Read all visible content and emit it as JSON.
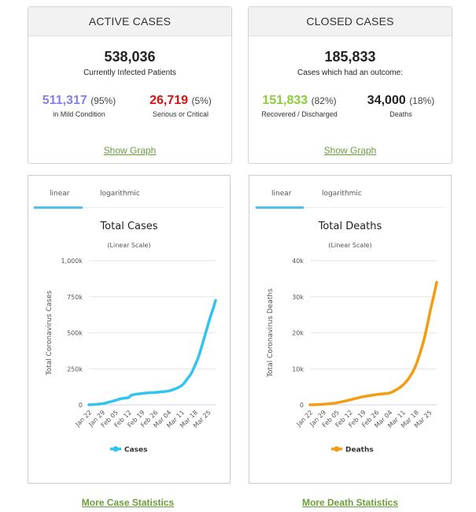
{
  "active": {
    "title": "ACTIVE CASES",
    "total": "538,036",
    "total_label": "Currently Infected Patients",
    "mild": {
      "value": "511,317",
      "pct": "(95%)",
      "label": "in Mild Condition",
      "color": "#8080f0"
    },
    "serious": {
      "value": "26,719",
      "pct": "(5%)",
      "label": "Serious or Critical",
      "color": "#e01010"
    },
    "show_graph": "Show Graph"
  },
  "closed": {
    "title": "CLOSED CASES",
    "total": "185,833",
    "total_label": "Cases which had an outcome:",
    "recovered": {
      "value": "151,833",
      "pct": "(82%)",
      "label": "Recovered / Discharged",
      "color": "#8acf36"
    },
    "deaths": {
      "value": "34,000",
      "pct": "(18%)",
      "label": "Deaths",
      "color": "#222222"
    },
    "show_graph": "Show Graph"
  },
  "links": {
    "more_cases": "More Case Statistics",
    "more_deaths": "More Death Statistics"
  },
  "chart_data": [
    {
      "type": "line",
      "title": "Total Cases",
      "subtitle": "(Linear Scale)",
      "tabs": [
        "linear",
        "logarithmic"
      ],
      "active_tab": "linear",
      "ylabel": "Total Coronavirus Cases",
      "xlabel": "",
      "ylim": [
        0,
        1000000
      ],
      "yticks": [
        0,
        250000,
        500000,
        750000,
        1000000
      ],
      "ytick_labels": [
        "0",
        "250k",
        "500k",
        "750k",
        "1,000k"
      ],
      "xtick_labels": [
        "Jan 22",
        "Jan 29",
        "Feb 05",
        "Feb 12",
        "Feb 19",
        "Feb 26",
        "Mar 04",
        "Mar 11",
        "Mar 18",
        "Mar 25"
      ],
      "grid": true,
      "legend": "bottom",
      "series": [
        {
          "name": "Cases",
          "color": "#33c3f0",
          "x": [
            0,
            3,
            7,
            10,
            14,
            17,
            21,
            22,
            24,
            28,
            31,
            35,
            38,
            42,
            45,
            48,
            50,
            52,
            54,
            56,
            58,
            60,
            62,
            64,
            66,
            67
          ],
          "values": [
            580,
            2800,
            7800,
            17000,
            31000,
            43000,
            51000,
            64000,
            72000,
            79000,
            83000,
            86000,
            90000,
            96000,
            108000,
            125000,
            145000,
            180000,
            215000,
            270000,
            335000,
            420000,
            510000,
            600000,
            680000,
            725000
          ]
        }
      ]
    },
    {
      "type": "line",
      "title": "Total Deaths",
      "subtitle": "(Linear Scale)",
      "tabs": [
        "linear",
        "logarithmic"
      ],
      "active_tab": "linear",
      "ylabel": "Total Coronavirus Deaths",
      "xlabel": "",
      "ylim": [
        0,
        40000
      ],
      "yticks": [
        0,
        10000,
        20000,
        30000,
        40000
      ],
      "ytick_labels": [
        "0",
        "10k",
        "20k",
        "30k",
        "40k"
      ],
      "xtick_labels": [
        "Jan 22",
        "Jan 29",
        "Feb 05",
        "Feb 12",
        "Feb 19",
        "Feb 26",
        "Mar 04",
        "Mar 11",
        "Mar 18",
        "Mar 25"
      ],
      "grid": true,
      "legend": "bottom",
      "series": [
        {
          "name": "Deaths",
          "color": "#f39c12",
          "x": [
            0,
            7,
            14,
            21,
            28,
            35,
            42,
            45,
            48,
            51,
            54,
            56,
            58,
            60,
            62,
            64,
            66,
            67
          ],
          "values": [
            17,
            170,
            560,
            1370,
            2250,
            2850,
            3300,
            4000,
            5000,
            6500,
            8800,
            11000,
            14000,
            17500,
            22000,
            27000,
            31500,
            34000
          ]
        }
      ]
    }
  ]
}
